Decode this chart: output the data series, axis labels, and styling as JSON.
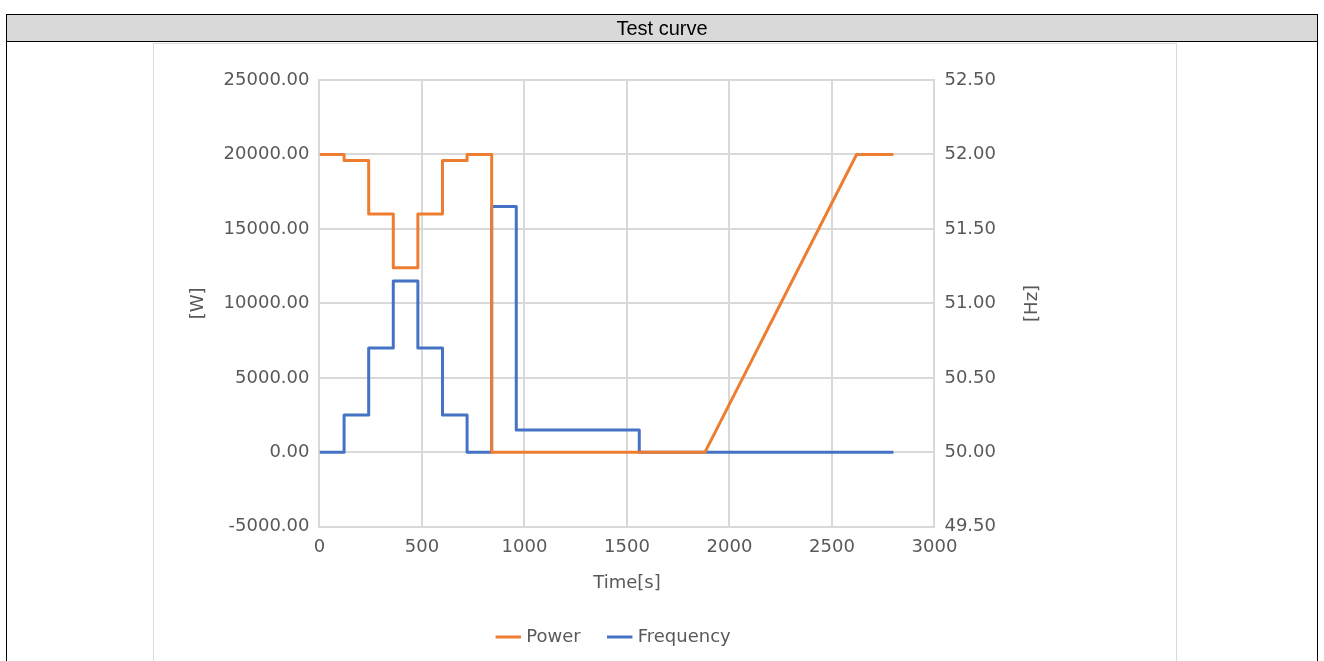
{
  "chart_data": {
    "type": "line",
    "title": "Test curve",
    "xlabel": "Time[s]",
    "ylabel": "[W]",
    "y2label": "[Hz]",
    "xlim": [
      0,
      3000
    ],
    "xticks": [
      0,
      500,
      1000,
      1500,
      2000,
      2500,
      3000
    ],
    "ylim": [
      -5000,
      25000
    ],
    "yticks": [
      {
        "value": -5000,
        "label": "-5000.00"
      },
      {
        "value": 0,
        "label": "0.00"
      },
      {
        "value": 5000,
        "label": "5000.00"
      },
      {
        "value": 10000,
        "label": "10000.00"
      },
      {
        "value": 15000,
        "label": "15000.00"
      },
      {
        "value": 20000,
        "label": "20000.00"
      },
      {
        "value": 25000,
        "label": "25000.00"
      }
    ],
    "y2lim": [
      49.5,
      52.5
    ],
    "y2ticks": [
      {
        "value": 49.5,
        "label": "49.50"
      },
      {
        "value": 50,
        "label": "50.00"
      },
      {
        "value": 50.5,
        "label": "50.50"
      },
      {
        "value": 51,
        "label": "51.00"
      },
      {
        "value": 51.5,
        "label": "51.50"
      },
      {
        "value": 52,
        "label": "52.00"
      },
      {
        "value": 52.5,
        "label": "52.50"
      }
    ],
    "grid": true,
    "legend": "bottom",
    "marker": "none",
    "line_style": "solid",
    "series": [
      {
        "name": "Power",
        "color": "#ed7d31",
        "x": [
          0,
          120,
          120,
          240,
          240,
          360,
          360,
          480,
          480,
          600,
          600,
          720,
          720,
          840,
          840,
          1880,
          2620,
          2800
        ],
        "values": [
          20000,
          20000,
          19600,
          19600,
          16000,
          16000,
          12400,
          12400,
          16000,
          16000,
          19600,
          19600,
          20000,
          20000,
          0,
          0,
          20000,
          20000
        ]
      },
      {
        "name": "Frequency",
        "color": "#4472c4",
        "axis": "y2",
        "x": [
          0,
          120,
          120,
          240,
          240,
          360,
          360,
          480,
          480,
          600,
          600,
          720,
          720,
          840,
          840,
          960,
          960,
          1560,
          1560,
          2800
        ],
        "values": [
          50,
          50,
          50.25,
          50.25,
          50.7,
          50.7,
          51.15,
          51.15,
          50.7,
          50.7,
          50.25,
          50.25,
          50,
          50,
          51.65,
          51.65,
          50.15,
          50.15,
          50,
          50
        ]
      }
    ]
  }
}
